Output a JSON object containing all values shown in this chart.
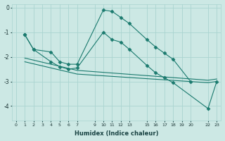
{
  "xlabel": "Humidex (Indice chaleur)",
  "ylabel": "",
  "bg_color": "#cce8e4",
  "grid_color": "#aad4d0",
  "line_color": "#1a7a6e",
  "xlim": [
    -0.5,
    23.5
  ],
  "ylim": [
    -4.6,
    0.15
  ],
  "yticks": [
    0,
    -1,
    -2,
    -3,
    -4
  ],
  "xticks": [
    0,
    1,
    2,
    3,
    4,
    5,
    6,
    7,
    9,
    10,
    11,
    12,
    13,
    15,
    16,
    17,
    18,
    19,
    20,
    22,
    23
  ],
  "xtick_labels": [
    "0",
    "1",
    "2",
    "3",
    "4",
    "5",
    "6",
    "7",
    "9",
    "10",
    "11",
    "12",
    "13",
    "15",
    "16",
    "17",
    "18",
    "19",
    "20",
    "22",
    "23"
  ],
  "lines": [
    {
      "x": [
        1,
        2,
        4,
        5,
        6,
        7,
        10,
        11,
        12,
        13,
        15,
        16,
        17,
        18,
        20
      ],
      "y": [
        -1.1,
        -1.7,
        -1.8,
        -2.2,
        -2.3,
        -2.3,
        -0.1,
        -0.15,
        -0.4,
        -0.65,
        -1.3,
        -1.6,
        -1.85,
        -2.1,
        -3.0
      ],
      "marker": "D",
      "markersize": 2.5
    },
    {
      "x": [
        1,
        2,
        4,
        5,
        6,
        7,
        10,
        11,
        12,
        13,
        15,
        16,
        17,
        18,
        22,
        23
      ],
      "y": [
        -1.1,
        -1.7,
        -2.2,
        -2.4,
        -2.5,
        -2.45,
        -1.0,
        -1.3,
        -1.4,
        -1.7,
        -2.35,
        -2.65,
        -2.85,
        -3.05,
        -4.1,
        -3.0
      ],
      "marker": "D",
      "markersize": 2.5
    },
    {
      "x": [
        1,
        7,
        22,
        23
      ],
      "y": [
        -2.05,
        -2.55,
        -2.95,
        -2.9
      ],
      "marker": null,
      "markersize": 0
    },
    {
      "x": [
        1,
        7,
        22,
        23
      ],
      "y": [
        -2.2,
        -2.7,
        -3.05,
        -3.0
      ],
      "marker": null,
      "markersize": 0
    }
  ]
}
